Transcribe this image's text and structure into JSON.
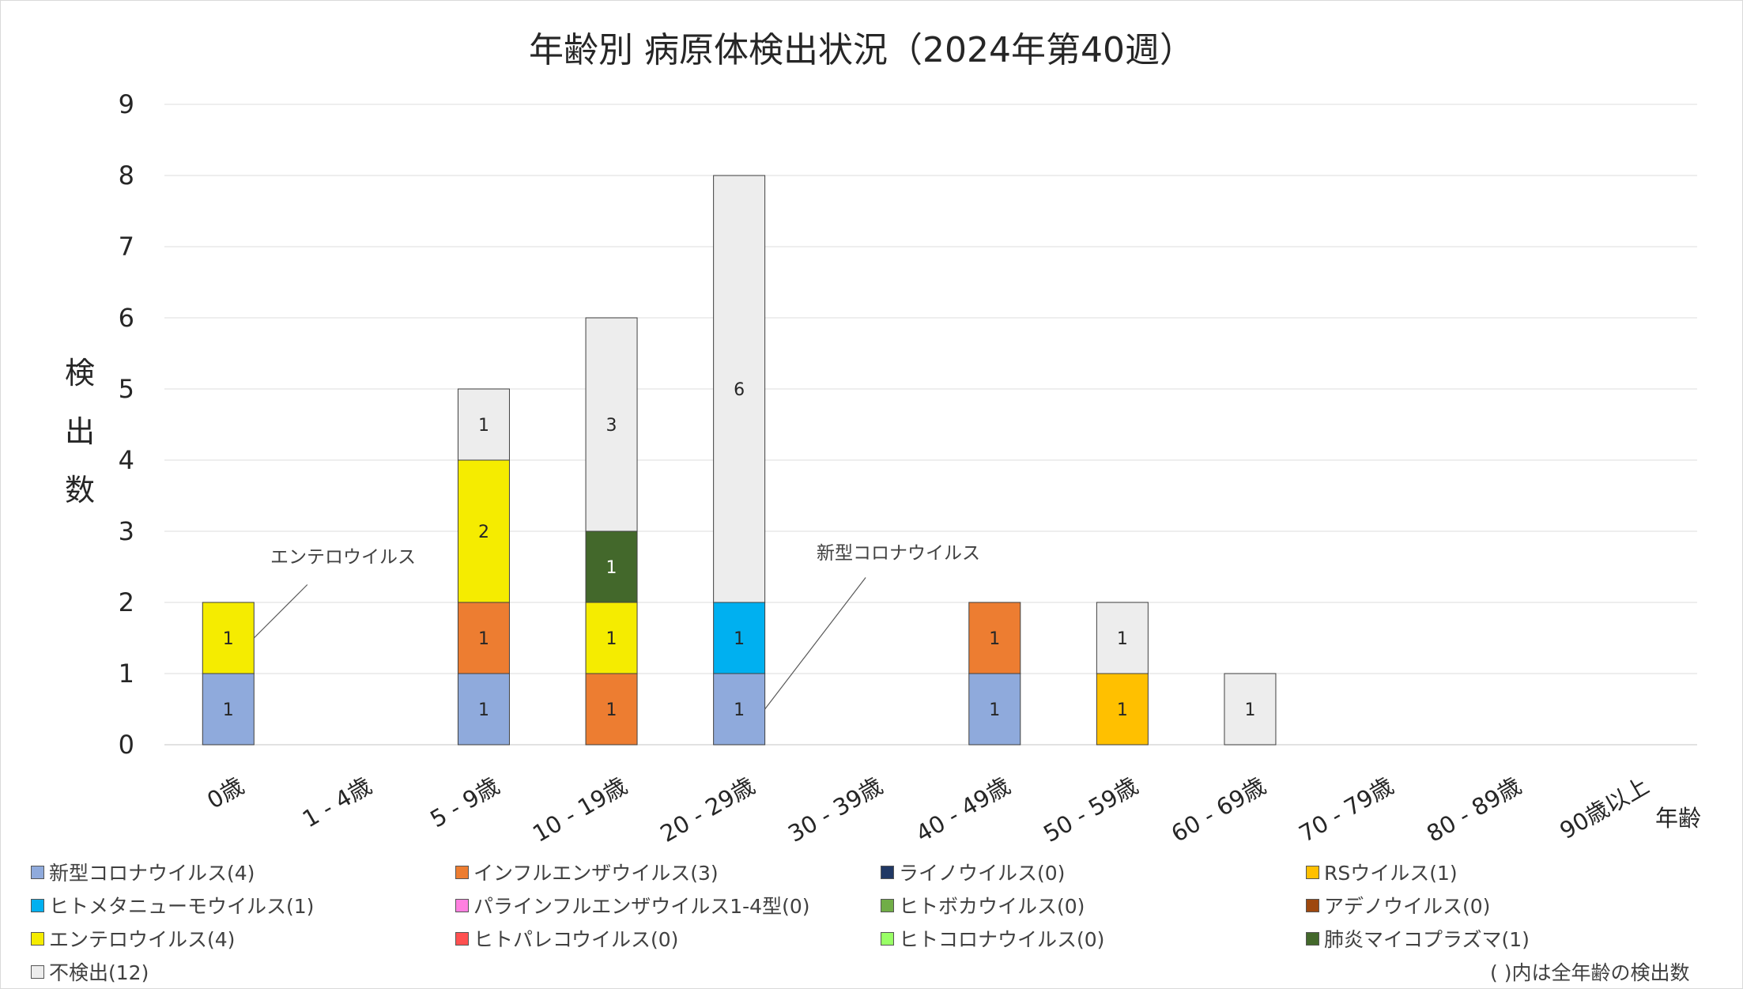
{
  "chart_data": {
    "type": "bar",
    "stacked": true,
    "title": "年齢別 病原体検出状況（2024年第40週）",
    "ylabel": "検出数",
    "xlabel": "年齢",
    "ylim": [
      0,
      9
    ],
    "yticks": [
      0,
      1,
      2,
      3,
      4,
      5,
      6,
      7,
      8,
      9
    ],
    "grid": true,
    "categories": [
      "0歳",
      "1 - 4歳",
      "5 - 9歳",
      "10 - 19歳",
      "20 - 29歳",
      "30 - 39歳",
      "40 - 49歳",
      "50 - 59歳",
      "60 - 69歳",
      "70 - 79歳",
      "80 - 89歳",
      "90歳以上"
    ],
    "series": [
      {
        "name": "新型コロナウイルス",
        "legend": "新型コロナウイルス(4)",
        "color": "#8faadc",
        "values": [
          1,
          0,
          1,
          0,
          1,
          0,
          1,
          0,
          0,
          0,
          0,
          0
        ]
      },
      {
        "name": "インフルエンザウイルス",
        "legend": "インフルエンザウイルス(3)",
        "color": "#ed7d31",
        "values": [
          0,
          0,
          1,
          1,
          0,
          0,
          1,
          0,
          0,
          0,
          0,
          0
        ]
      },
      {
        "name": "ライノウイルス",
        "legend": "ライノウイルス(0)",
        "color": "#203864",
        "values": [
          0,
          0,
          0,
          0,
          0,
          0,
          0,
          0,
          0,
          0,
          0,
          0
        ]
      },
      {
        "name": "RSウイルス",
        "legend": "RSウイルス(1)",
        "color": "#ffc000",
        "values": [
          0,
          0,
          0,
          0,
          0,
          0,
          0,
          1,
          0,
          0,
          0,
          0
        ]
      },
      {
        "name": "ヒトメタニューモウイルス",
        "legend": "ヒトメタニューモウイルス(1)",
        "color": "#00b0f0",
        "values": [
          0,
          0,
          0,
          0,
          1,
          0,
          0,
          0,
          0,
          0,
          0,
          0
        ]
      },
      {
        "name": "パラインフルエンザウイルス1-4型",
        "legend": "パラインフルエンザウイルス1-4型(0)",
        "color": "#ff80e0",
        "values": [
          0,
          0,
          0,
          0,
          0,
          0,
          0,
          0,
          0,
          0,
          0,
          0
        ]
      },
      {
        "name": "ヒトボカウイルス",
        "legend": "ヒトボカウイルス(0)",
        "color": "#70ad47",
        "values": [
          0,
          0,
          0,
          0,
          0,
          0,
          0,
          0,
          0,
          0,
          0,
          0
        ]
      },
      {
        "name": "アデノウイルス",
        "legend": "アデノウイルス(0)",
        "color": "#9e480e",
        "values": [
          0,
          0,
          0,
          0,
          0,
          0,
          0,
          0,
          0,
          0,
          0,
          0
        ]
      },
      {
        "name": "エンテロウイルス",
        "legend": "エンテロウイルス(4)",
        "color": "#f5ec00",
        "values": [
          1,
          0,
          2,
          1,
          0,
          0,
          0,
          0,
          0,
          0,
          0,
          0
        ]
      },
      {
        "name": "ヒトパレコウイルス",
        "legend": "ヒトパレコウイルス(0)",
        "color": "#ff5050",
        "values": [
          0,
          0,
          0,
          0,
          0,
          0,
          0,
          0,
          0,
          0,
          0,
          0
        ]
      },
      {
        "name": "ヒトコロナウイルス",
        "legend": "ヒトコロナウイルス(0)",
        "color": "#99ff66",
        "values": [
          0,
          0,
          0,
          0,
          0,
          0,
          0,
          0,
          0,
          0,
          0,
          0
        ]
      },
      {
        "name": "肺炎マイコプラズマ",
        "legend": "肺炎マイコプラズマ(1)",
        "color": "#43682b",
        "values": [
          0,
          0,
          0,
          1,
          0,
          0,
          0,
          0,
          0,
          0,
          0,
          0
        ]
      },
      {
        "name": "不検出",
        "legend": "不検出(12)",
        "color": "#ededed",
        "values": [
          0,
          0,
          1,
          3,
          6,
          0,
          0,
          1,
          1,
          0,
          0,
          0
        ]
      }
    ],
    "stack_order": [
      0,
      1,
      3,
      4,
      8,
      11,
      12
    ],
    "annotations": [
      {
        "text": "エンテロウイルス",
        "category": "0歳"
      },
      {
        "text": "新型コロナウイルス",
        "category": "20 - 29歳"
      }
    ],
    "note": "( )内は全年齢の検出数",
    "legend_position": "bottom"
  }
}
